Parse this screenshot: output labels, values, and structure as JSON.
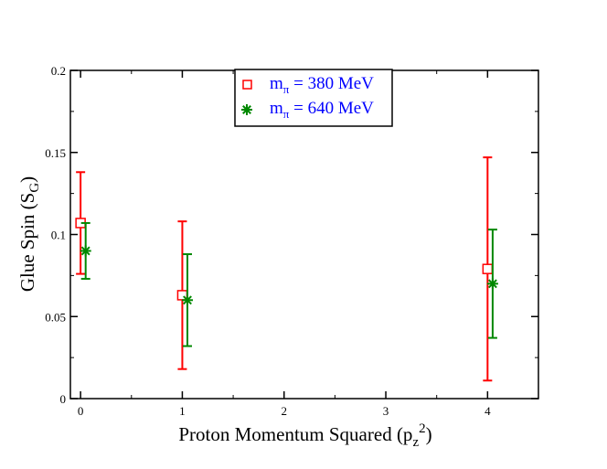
{
  "chart_data": {
    "type": "scatter",
    "title": "",
    "xlabel": "Proton Momentum Squared (p",
    "xlabel_sub": "z",
    "xlabel_sup": "2",
    "xlabel_close": ")",
    "ylabel": "Glue Spin (S",
    "ylabel_sub": "G",
    "ylabel_close": ")",
    "xlim": [
      -0.1,
      4.5
    ],
    "ylim": [
      0,
      0.2
    ],
    "x_ticks": [
      0,
      1,
      2,
      3,
      4
    ],
    "x_tick_labels": [
      "0",
      "1",
      "2",
      "3",
      "4"
    ],
    "y_ticks": [
      0,
      0.05,
      0.1,
      0.15,
      0.2
    ],
    "y_tick_labels": [
      "0",
      "0.05",
      "0.1",
      "0.15",
      "0.2"
    ],
    "legend_position": "top-center",
    "series": [
      {
        "name": "m",
        "name_sub": "π",
        "name_rest": " = 380 MeV",
        "marker": "square-open",
        "color": "#ff0000",
        "x": [
          0,
          1,
          4
        ],
        "y": [
          0.107,
          0.063,
          0.079
        ],
        "y_err_low": [
          0.076,
          0.018,
          0.011
        ],
        "y_err_high": [
          0.138,
          0.108,
          0.147
        ]
      },
      {
        "name": "m",
        "name_sub": "π",
        "name_rest": " = 640 MeV",
        "marker": "asterisk",
        "color": "#008800",
        "x": [
          0.05,
          1.05,
          4.05
        ],
        "y": [
          0.09,
          0.06,
          0.07
        ],
        "y_err_low": [
          0.073,
          0.032,
          0.037
        ],
        "y_err_high": [
          0.107,
          0.088,
          0.103
        ]
      }
    ],
    "legend_text_color": "#0000ff"
  }
}
